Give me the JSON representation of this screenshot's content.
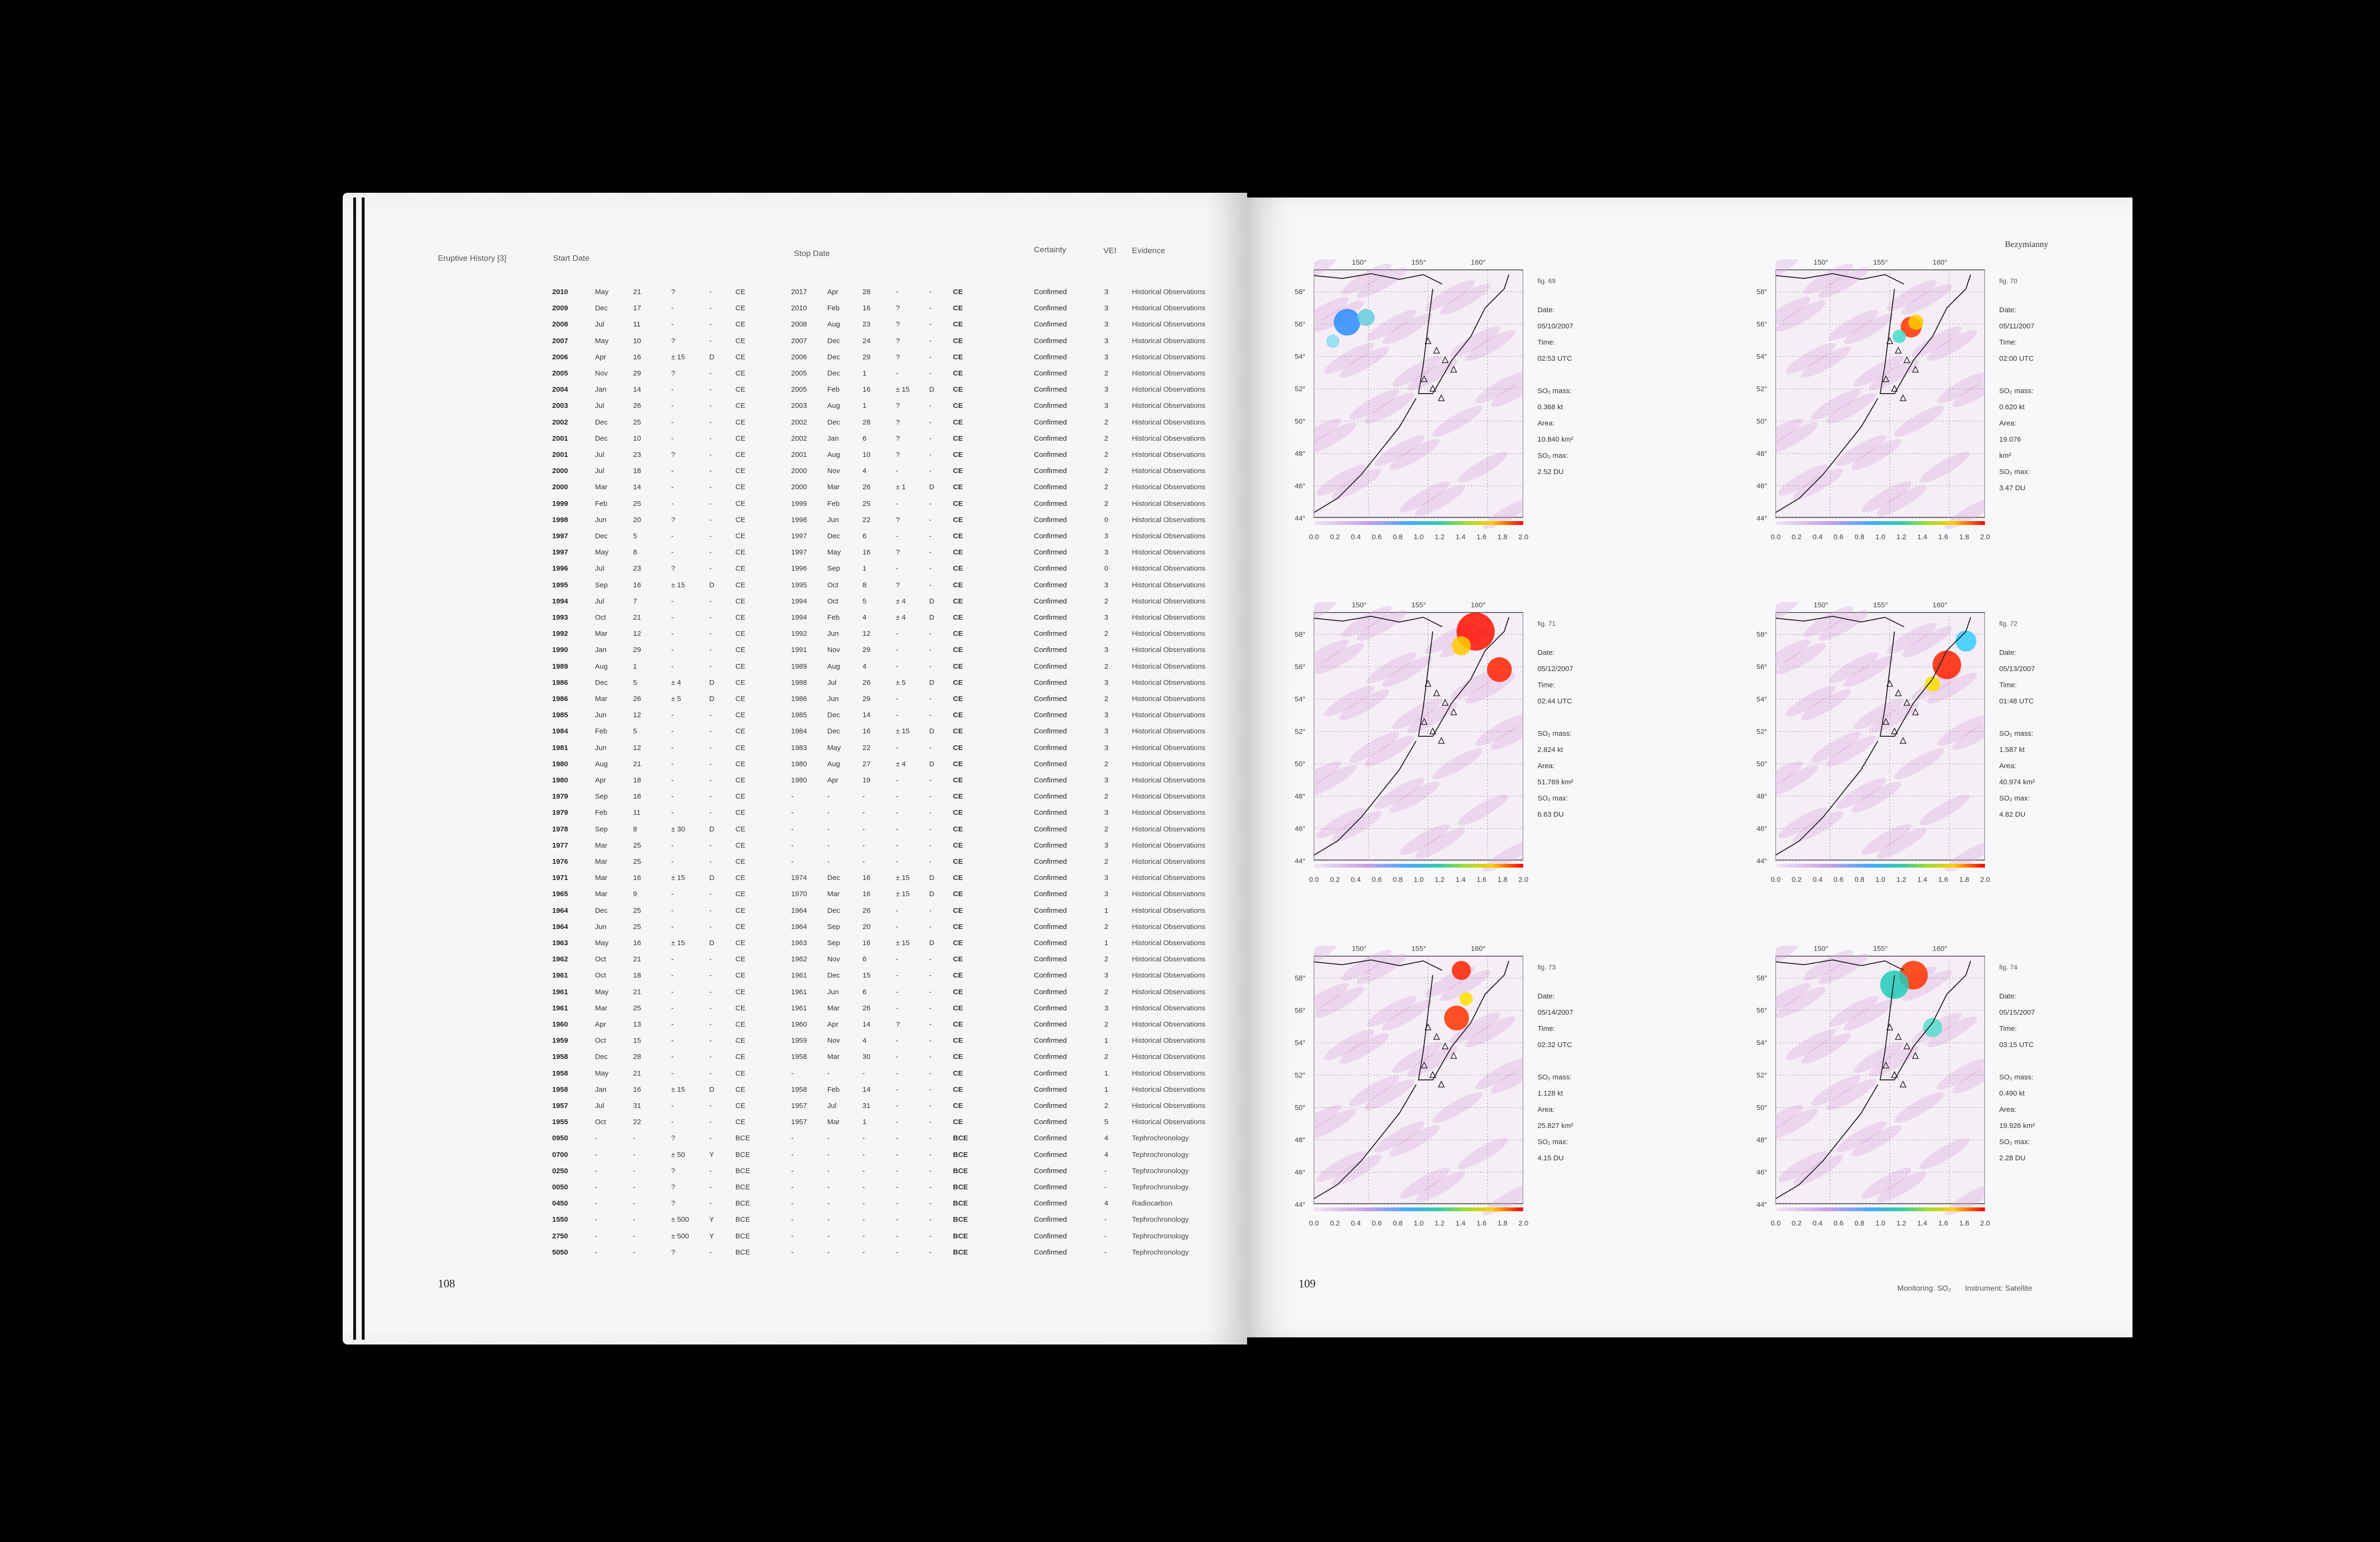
{
  "left_page": {
    "section_title": "Eruptive History [3]",
    "headers": {
      "start": "Start Date",
      "stop": "Stop Date",
      "certainty": "Certainty",
      "vei": "VEI",
      "evidence": "Evidence"
    },
    "page_number": "108",
    "rows": [
      [
        "2010",
        "May",
        "21",
        "?",
        "-",
        "CE",
        "2017",
        "Apr",
        "28",
        "-",
        "-",
        "CE",
        "Confirmed",
        "3",
        "Historical Observations"
      ],
      [
        "2009",
        "Dec",
        "17",
        "-",
        "-",
        "CE",
        "2010",
        "Feb",
        "16",
        "?",
        "-",
        "CE",
        "Confirmed",
        "3",
        "Historical Observations"
      ],
      [
        "2008",
        "Jul",
        "11",
        "-",
        "-",
        "CE",
        "2008",
        "Aug",
        "23",
        "?",
        "-",
        "CE",
        "Confirmed",
        "3",
        "Historical Observations"
      ],
      [
        "2007",
        "May",
        "10",
        "?",
        "-",
        "CE",
        "2007",
        "Dec",
        "24",
        "?",
        "-",
        "CE",
        "Confirmed",
        "3",
        "Historical Observations"
      ],
      [
        "2006",
        "Apr",
        "16",
        "± 15",
        "D",
        "CE",
        "2006",
        "Dec",
        "29",
        "?",
        "-",
        "CE",
        "Confirmed",
        "3",
        "Historical Observations"
      ],
      [
        "2005",
        "Nov",
        "29",
        "?",
        "-",
        "CE",
        "2005",
        "Dec",
        "1",
        "-",
        "-",
        "CE",
        "Confirmed",
        "2",
        "Historical Observations"
      ],
      [
        "2004",
        "Jan",
        "14",
        "-",
        "-",
        "CE",
        "2005",
        "Feb",
        "16",
        "± 15",
        "D",
        "CE",
        "Confirmed",
        "3",
        "Historical Observations"
      ],
      [
        "2003",
        "Jul",
        "26",
        "-",
        "-",
        "CE",
        "2003",
        "Aug",
        "1",
        "?",
        "-",
        "CE",
        "Confirmed",
        "3",
        "Historical Observations"
      ],
      [
        "2002",
        "Dec",
        "25",
        "-",
        "-",
        "CE",
        "2002",
        "Dec",
        "28",
        "?",
        "-",
        "CE",
        "Confirmed",
        "2",
        "Historical Observations"
      ],
      [
        "2001",
        "Dec",
        "10",
        "-",
        "-",
        "CE",
        "2002",
        "Jan",
        "6",
        "?",
        "-",
        "CE",
        "Confirmed",
        "2",
        "Historical Observations"
      ],
      [
        "2001",
        "Jul",
        "23",
        "?",
        "-",
        "CE",
        "2001",
        "Aug",
        "10",
        "?",
        "-",
        "CE",
        "Confirmed",
        "2",
        "Historical Observations"
      ],
      [
        "2000",
        "Jul",
        "18",
        "-",
        "-",
        "CE",
        "2000",
        "Nov",
        "4",
        "-",
        "-",
        "CE",
        "Confirmed",
        "2",
        "Historical Observations"
      ],
      [
        "2000",
        "Mar",
        "14",
        "-",
        "-",
        "CE",
        "2000",
        "Mar",
        "26",
        "± 1",
        "D",
        "CE",
        "Confirmed",
        "2",
        "Historical Observations"
      ],
      [
        "1999",
        "Feb",
        "25",
        "-",
        "-",
        "CE",
        "1999",
        "Feb",
        "25",
        "-",
        "-",
        "CE",
        "Confirmed",
        "2",
        "Historical Observations"
      ],
      [
        "1998",
        "Jun",
        "20",
        "?",
        "-",
        "CE",
        "1998",
        "Jun",
        "22",
        "?",
        "-",
        "CE",
        "Confirmed",
        "0",
        "Historical Observations"
      ],
      [
        "1997",
        "Dec",
        "5",
        "-",
        "-",
        "CE",
        "1997",
        "Dec",
        "6",
        "-",
        "-",
        "CE",
        "Confirmed",
        "3",
        "Historical Observations"
      ],
      [
        "1997",
        "May",
        "8",
        "-",
        "-",
        "CE",
        "1997",
        "May",
        "16",
        "?",
        "-",
        "CE",
        "Confirmed",
        "3",
        "Historical Observations"
      ],
      [
        "1996",
        "Jul",
        "23",
        "?",
        "-",
        "CE",
        "1996",
        "Sep",
        "1",
        "-",
        "-",
        "CE",
        "Confirmed",
        "0",
        "Historical Observations"
      ],
      [
        "1995",
        "Sep",
        "16",
        "± 15",
        "D",
        "CE",
        "1995",
        "Oct",
        "8",
        "?",
        "-",
        "CE",
        "Confirmed",
        "3",
        "Historical Observations"
      ],
      [
        "1994",
        "Jul",
        "7",
        "-",
        "-",
        "CE",
        "1994",
        "Oct",
        "5",
        "± 4",
        "D",
        "CE",
        "Confirmed",
        "2",
        "Historical Observations"
      ],
      [
        "1993",
        "Oct",
        "21",
        "-",
        "-",
        "CE",
        "1994",
        "Feb",
        "4",
        "± 4",
        "D",
        "CE",
        "Confirmed",
        "3",
        "Historical Observations"
      ],
      [
        "1992",
        "Mar",
        "12",
        "-",
        "-",
        "CE",
        "1992",
        "Jun",
        "12",
        "-",
        "-",
        "CE",
        "Confirmed",
        "2",
        "Historical Observations"
      ],
      [
        "1990",
        "Jan",
        "29",
        "-",
        "-",
        "CE",
        "1991",
        "Nov",
        "29",
        "-",
        "-",
        "CE",
        "Confirmed",
        "3",
        "Historical Observations"
      ],
      [
        "1989",
        "Aug",
        "1",
        "-",
        "-",
        "CE",
        "1989",
        "Aug",
        "4",
        "-",
        "-",
        "CE",
        "Confirmed",
        "2",
        "Historical Observations"
      ],
      [
        "1986",
        "Dec",
        "5",
        "± 4",
        "D",
        "CE",
        "1988",
        "Jul",
        "26",
        "± 5",
        "D",
        "CE",
        "Confirmed",
        "3",
        "Historical Observations"
      ],
      [
        "1986",
        "Mar",
        "26",
        "± 5",
        "D",
        "CE",
        "1986",
        "Jun",
        "29",
        "-",
        "-",
        "CE",
        "Confirmed",
        "2",
        "Historical Observations"
      ],
      [
        "1985",
        "Jun",
        "12",
        "-",
        "-",
        "CE",
        "1985",
        "Dec",
        "14",
        "-",
        "-",
        "CE",
        "Confirmed",
        "3",
        "Historical Observations"
      ],
      [
        "1984",
        "Feb",
        "5",
        "-",
        "-",
        "CE",
        "1984",
        "Dec",
        "16",
        "± 15",
        "D",
        "CE",
        "Confirmed",
        "3",
        "Historical Observations"
      ],
      [
        "1981",
        "Jun",
        "12",
        "-",
        "-",
        "CE",
        "1983",
        "May",
        "22",
        "-",
        "-",
        "CE",
        "Confirmed",
        "3",
        "Historical Observations"
      ],
      [
        "1980",
        "Aug",
        "21",
        "-",
        "-",
        "CE",
        "1980",
        "Aug",
        "27",
        "± 4",
        "D",
        "CE",
        "Confirmed",
        "2",
        "Historical Observations"
      ],
      [
        "1980",
        "Apr",
        "18",
        "-",
        "-",
        "CE",
        "1980",
        "Apr",
        "19",
        "-",
        "-",
        "CE",
        "Confirmed",
        "3",
        "Historical Observations"
      ],
      [
        "1979",
        "Sep",
        "18",
        "-",
        "-",
        "CE",
        "-",
        "-",
        "-",
        "-",
        "-",
        "CE",
        "Confirmed",
        "2",
        "Historical Observations"
      ],
      [
        "1979",
        "Feb",
        "11",
        "-",
        "-",
        "CE",
        "-",
        "-",
        "-",
        "-",
        "-",
        "CE",
        "Confirmed",
        "3",
        "Historical Observations"
      ],
      [
        "1978",
        "Sep",
        "8",
        "± 30",
        "D",
        "CE",
        "-",
        "-",
        "-",
        "-",
        "-",
        "CE",
        "Confirmed",
        "2",
        "Historical Observations"
      ],
      [
        "1977",
        "Mar",
        "25",
        "-",
        "-",
        "CE",
        "-",
        "-",
        "-",
        "-",
        "-",
        "CE",
        "Confirmed",
        "3",
        "Historical Observations"
      ],
      [
        "1976",
        "Mar",
        "25",
        "-",
        "-",
        "CE",
        "-",
        "-",
        "-",
        "-",
        "-",
        "CE",
        "Confirmed",
        "2",
        "Historical Observations"
      ],
      [
        "1971",
        "Mar",
        "16",
        "± 15",
        "D",
        "CE",
        "1974",
        "Dec",
        "16",
        "± 15",
        "D",
        "CE",
        "Confirmed",
        "3",
        "Historical Observations"
      ],
      [
        "1965",
        "Mar",
        "9",
        "-",
        "-",
        "CE",
        "1970",
        "Mar",
        "16",
        "± 15",
        "D",
        "CE",
        "Confirmed",
        "3",
        "Historical Observations"
      ],
      [
        "1964",
        "Dec",
        "25",
        "-",
        "-",
        "CE",
        "1964",
        "Dec",
        "26",
        "-",
        "-",
        "CE",
        "Confirmed",
        "1",
        "Historical Observations"
      ],
      [
        "1964",
        "Jun",
        "25",
        "-",
        "-",
        "CE",
        "1964",
        "Sep",
        "20",
        "-",
        "-",
        "CE",
        "Confirmed",
        "2",
        "Historical Observations"
      ],
      [
        "1963",
        "May",
        "16",
        "± 15",
        "D",
        "CE",
        "1963",
        "Sep",
        "16",
        "± 15",
        "D",
        "CE",
        "Confirmed",
        "1",
        "Historical Observations"
      ],
      [
        "1962",
        "Oct",
        "21",
        "-",
        "-",
        "CE",
        "1962",
        "Nov",
        "6",
        "-",
        "-",
        "CE",
        "Confirmed",
        "2",
        "Historical Observations"
      ],
      [
        "1961",
        "Oct",
        "18",
        "-",
        "-",
        "CE",
        "1961",
        "Dec",
        "15",
        "-",
        "-",
        "CE",
        "Confirmed",
        "3",
        "Historical Observations"
      ],
      [
        "1961",
        "May",
        "21",
        "-",
        "-",
        "CE",
        "1961",
        "Jun",
        "6",
        "-",
        "-",
        "CE",
        "Confirmed",
        "2",
        "Historical Observations"
      ],
      [
        "1961",
        "Mar",
        "25",
        "-",
        "-",
        "CE",
        "1961",
        "Mar",
        "26",
        "-",
        "-",
        "CE",
        "Confirmed",
        "3",
        "Historical Observations"
      ],
      [
        "1960",
        "Apr",
        "13",
        "-",
        "-",
        "CE",
        "1960",
        "Apr",
        "14",
        "?",
        "-",
        "CE",
        "Confirmed",
        "2",
        "Historical Observations"
      ],
      [
        "1959",
        "Oct",
        "15",
        "-",
        "-",
        "CE",
        "1959",
        "Nov",
        "4",
        "-",
        "-",
        "CE",
        "Confirmed",
        "1",
        "Historical Observations"
      ],
      [
        "1958",
        "Dec",
        "28",
        "-",
        "-",
        "CE",
        "1958",
        "Mar",
        "30",
        "-",
        "-",
        "CE",
        "Confirmed",
        "2",
        "Historical Observations"
      ],
      [
        "1958",
        "May",
        "21",
        "-",
        "-",
        "CE",
        "-",
        "-",
        "-",
        "-",
        "-",
        "CE",
        "Confirmed",
        "1",
        "Historical Observations"
      ],
      [
        "1958",
        "Jan",
        "16",
        "± 15",
        "D",
        "CE",
        "1958",
        "Feb",
        "14",
        "-",
        "-",
        "CE",
        "Confirmed",
        "1",
        "Historical Observations"
      ],
      [
        "1957",
        "Jul",
        "31",
        "-",
        "-",
        "CE",
        "1957",
        "Jul",
        "31",
        "-",
        "-",
        "CE",
        "Confirmed",
        "2",
        "Historical Observations"
      ],
      [
        "1955",
        "Oct",
        "22",
        "-",
        "-",
        "CE",
        "1957",
        "Mar",
        "1",
        "-",
        "-",
        "CE",
        "Confirmed",
        "5",
        "Historical Observations"
      ],
      [
        "0950",
        "-",
        "-",
        "?",
        "-",
        "BCE",
        "-",
        "-",
        "-",
        "-",
        "-",
        "BCE",
        "Confirmed",
        "4",
        "Tephrochronology"
      ],
      [
        "0700",
        "-",
        "-",
        "± 50",
        "Y",
        "BCE",
        "-",
        "-",
        "-",
        "-",
        "-",
        "BCE",
        "Confirmed",
        "4",
        "Tephrochronology"
      ],
      [
        "0250",
        "-",
        "-",
        "?",
        "-",
        "BCE",
        "-",
        "-",
        "-",
        "-",
        "-",
        "BCE",
        "Confirmed",
        "-",
        "Tephrochronology"
      ],
      [
        "0050",
        "-",
        "-",
        "?",
        "-",
        "BCE",
        "-",
        "-",
        "-",
        "-",
        "-",
        "BCE",
        "Confirmed",
        "-",
        "Tephrochronology"
      ],
      [
        "0450",
        "-",
        "-",
        "?",
        "-",
        "BCE",
        "-",
        "-",
        "-",
        "-",
        "-",
        "BCE",
        "Confirmed",
        "4",
        "Radiocarbon"
      ],
      [
        "1550",
        "-",
        "-",
        "± 500",
        "Y",
        "BCE",
        "-",
        "-",
        "-",
        "-",
        "-",
        "BCE",
        "Confirmed",
        "-",
        "Tephrochronology"
      ],
      [
        "2750",
        "-",
        "-",
        "± 500",
        "Y",
        "BCE",
        "-",
        "-",
        "-",
        "-",
        "-",
        "BCE",
        "Confirmed",
        "-",
        "Tephrochronology"
      ],
      [
        "5050",
        "-",
        "-",
        "?",
        "-",
        "BCE",
        "-",
        "-",
        "-",
        "-",
        "-",
        "BCE",
        "Confirmed",
        "-",
        "Tephrochronology"
      ]
    ]
  },
  "right_page": {
    "running_head": "Bezymianny",
    "page_number": "109",
    "footer_left": "Monitoring: SO₂",
    "footer_right": "Instrument: Satellite",
    "lon_labels": [
      "150°",
      "155°",
      "160°"
    ],
    "lat_labels": [
      "58°",
      "56°",
      "54°",
      "52°",
      "50°",
      "48°",
      "46°",
      "44°"
    ],
    "colorbar_ticks": [
      "0.0",
      "0.2",
      "0.4",
      "0.6",
      "0.8",
      "1.0",
      "1.2",
      "1.4",
      "1.6",
      "1.8",
      "2.0"
    ],
    "figures": [
      {
        "fig": "fig. 69",
        "date": "Date: 05/10/2007",
        "time": "Time: 02:53 UTC",
        "mass": "SO₂ mass: 0.368 kt",
        "area": "Area: 10.840 km²",
        "max": "SO₂ max: 2.52 DU"
      },
      {
        "fig": "fig. 70",
        "date": "Date: 05/11/2007",
        "time": "Time: 02:00 UTC",
        "mass": "SO₂ mass: 0.620 kt",
        "area": "Area: 19.076 km²",
        "max": "SO₂ max: 3.47 DU"
      },
      {
        "fig": "fig. 71",
        "date": "Date: 05/12/2007",
        "time": "Time: 02:44 UTC",
        "mass": "SO₂ mass: 2.824 kt",
        "area": "Area: 51.769 km²",
        "max": "SO₂ max: 6.63 DU"
      },
      {
        "fig": "fig. 72",
        "date": "Date: 05/13/2007",
        "time": "Time: 01:48 UTC",
        "mass": "SO₂ mass: 1.587 kt",
        "area": "Area: 40.974 km²",
        "max": "SO₂ max: 4.82 DU"
      },
      {
        "fig": "fig. 73",
        "date": "Date: 05/14/2007",
        "time": "Time: 02:32 UTC",
        "mass": "SO₂ mass: 1.128 kt",
        "area": "Area: 25.827 km²",
        "max": "SO₂ max: 4.15 DU"
      },
      {
        "fig": "fig. 74",
        "date": "Date: 05/15/2007",
        "time": "Time: 03:15 UTC",
        "mass": "SO₂ mass: 0.490 kt",
        "area": "Area: 19.926 km²",
        "max": "SO₂ max: 2.28 DU"
      }
    ]
  }
}
